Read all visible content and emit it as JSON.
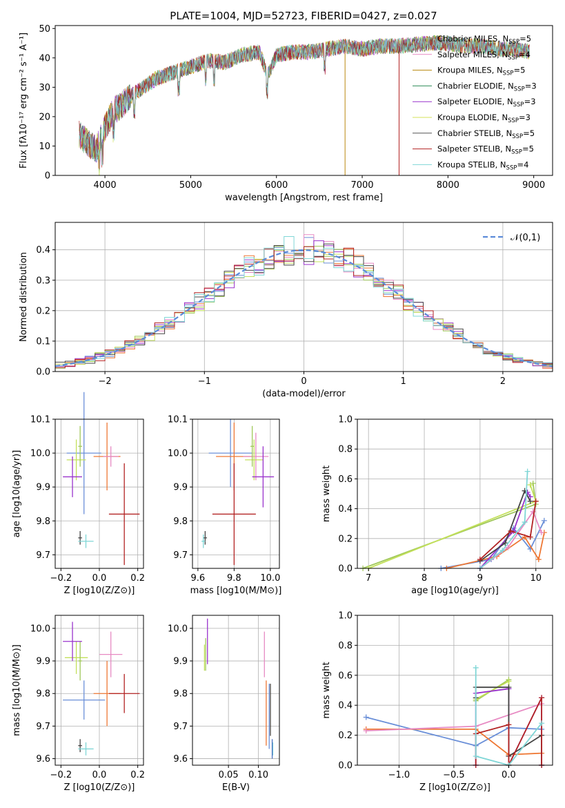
{
  "chart_data": [
    {
      "type": "line",
      "title": "PLATE=1004, MJD=52723, FIBERID=0427, z=0.027",
      "xlabel": "wavelength [Angstrom, rest frame]",
      "ylabel": "Flux [fλ10⁻¹⁷ erg cm⁻² s⁻¹ A⁻¹]",
      "xlim": [
        3420,
        9220
      ],
      "ylim": [
        0,
        51
      ],
      "xticks": [
        "4000",
        "5000",
        "6000",
        "7000",
        "8000",
        "9000"
      ],
      "yticks": [
        "0",
        "10",
        "20",
        "30",
        "40",
        "50"
      ],
      "legend_position": "top-right",
      "series": [
        {
          "name": "Chabrier MILES, N_SSP=5",
          "color": "#8fbc8f"
        },
        {
          "name": "Salpeter MILES, N_SSP=4",
          "color": "#e78ac3"
        },
        {
          "name": "Kroupa MILES, N_SSP=5",
          "color": "#b8860b"
        },
        {
          "name": "Chabrier ELODIE, N_SSP=3",
          "color": "#2e8b57"
        },
        {
          "name": "Salpeter ELODIE, N_SSP=3",
          "color": "#9932cc"
        },
        {
          "name": "Kroupa ELODIE, N_SSP=3",
          "color": "#d4e157"
        },
        {
          "name": "Chabrier STELIB, N_SSP=5",
          "color": "#555555"
        },
        {
          "name": "Salpeter STELIB, N_SSP=5",
          "color": "#b22222"
        },
        {
          "name": "Kroupa STELIB, N_SSP=4",
          "color": "#7fd6d6"
        }
      ],
      "continuum": {
        "x": [
          3700,
          3800,
          3900,
          4000,
          4100,
          4200,
          4300,
          4400,
          4500,
          4600,
          4800,
          5000,
          5200,
          5400,
          5600,
          5800,
          5900,
          6000,
          6200,
          6400,
          6600,
          6800,
          7000,
          7200,
          7400,
          7600,
          7800,
          8000,
          8200,
          8400,
          8600,
          8800,
          8950
        ],
        "y": [
          14,
          11,
          9,
          16,
          22,
          24,
          27,
          29,
          31,
          33,
          35,
          37,
          39,
          38.5,
          41,
          42,
          34,
          41,
          42,
          42,
          43,
          44,
          43,
          44,
          44,
          44.5,
          45,
          45,
          44,
          44,
          43,
          43,
          42
        ]
      },
      "dips": [
        {
          "x": 3934,
          "y": 0
        },
        {
          "x": 6800,
          "y": 0
        },
        {
          "x": 7430,
          "y": 0
        }
      ]
    },
    {
      "type": "histogram",
      "xlabel": "(data-model)/error",
      "ylabel": "Normed distribution",
      "xlim": [
        -2.5,
        2.5
      ],
      "ylim": [
        0,
        0.49
      ],
      "xticks": [
        "−2",
        "−1",
        "0",
        "1",
        "2"
      ],
      "yticks": [
        "0.0",
        "0.1",
        "0.2",
        "0.3",
        "0.4"
      ],
      "reference_curve": "𝒩(0,1)",
      "reference_color": "#5b8bd9",
      "bin_width": 0.1,
      "series_colors": [
        "#6a8fd8",
        "#ee7733",
        "#e78ac3",
        "#a0c85a",
        "#9932cc",
        "#c3e05a",
        "#444444",
        "#b22222",
        "#7fd6d6"
      ]
    },
    {
      "type": "scatter",
      "xlabel": "Z [log10(Z/Z⊙)]",
      "ylabel": "age  [log10(age/yr)]",
      "xlim": [
        -0.23,
        0.23
      ],
      "ylim": [
        9.66,
        10.1
      ],
      "xticks": [
        "−0.2",
        "0.0",
        "0.2"
      ],
      "yticks": [
        "9.7",
        "9.8",
        "9.9",
        "10.0",
        "10.1"
      ],
      "points": [
        {
          "x": -0.08,
          "y": 10.0,
          "xerr": 0.09,
          "yerr": 0.18,
          "color": "#6a8fd8"
        },
        {
          "x": 0.04,
          "y": 9.99,
          "xerr": 0.07,
          "yerr": 0.1,
          "color": "#ee7733"
        },
        {
          "x": 0.06,
          "y": 9.99,
          "xerr": 0.04,
          "yerr": 0.03,
          "color": "#e78ac3"
        },
        {
          "x": -0.12,
          "y": 9.98,
          "xerr": 0.05,
          "yerr": 0.06,
          "color": "#c3e05a"
        },
        {
          "x": -0.1,
          "y": 10.02,
          "xerr": 0.01,
          "yerr": 0.06,
          "color": "#a0c85a"
        },
        {
          "x": -0.14,
          "y": 9.93,
          "xerr": 0.05,
          "yerr": 0.06,
          "color": "#9932cc"
        },
        {
          "x": 0.13,
          "y": 9.82,
          "xerr": 0.08,
          "yerr": 0.15,
          "color": "#b22222"
        },
        {
          "x": -0.1,
          "y": 9.75,
          "xerr": 0.01,
          "yerr": 0.02,
          "color": "#444444"
        },
        {
          "x": -0.07,
          "y": 9.74,
          "xerr": 0.04,
          "yerr": 0.02,
          "color": "#7fd6d6"
        }
      ]
    },
    {
      "type": "scatter",
      "xlabel": "mass [log10(M/M⊙)]",
      "ylabel": "",
      "xlim": [
        9.57,
        10.05
      ],
      "ylim": [
        9.66,
        10.1
      ],
      "xticks": [
        "9.6",
        "9.8",
        "10.0"
      ],
      "yticks": [
        "9.7",
        "9.8",
        "9.9",
        "10.0",
        "10.1"
      ],
      "points": [
        {
          "x": 9.78,
          "y": 10.0,
          "xerr": 0.12,
          "yerr": 0.1,
          "color": "#6a8fd8"
        },
        {
          "x": 9.8,
          "y": 9.99,
          "xerr": 0.1,
          "yerr": 0.1,
          "color": "#ee7733"
        },
        {
          "x": 9.92,
          "y": 9.99,
          "xerr": 0.07,
          "yerr": 0.07,
          "color": "#e78ac3"
        },
        {
          "x": 9.91,
          "y": 9.98,
          "xerr": 0.05,
          "yerr": 0.06,
          "color": "#c3e05a"
        },
        {
          "x": 9.9,
          "y": 10.02,
          "xerr": 0.01,
          "yerr": 0.06,
          "color": "#a0c85a"
        },
        {
          "x": 9.96,
          "y": 9.93,
          "xerr": 0.06,
          "yerr": 0.09,
          "color": "#9932cc"
        },
        {
          "x": 9.8,
          "y": 9.82,
          "xerr": 0.12,
          "yerr": 0.15,
          "color": "#b22222"
        },
        {
          "x": 9.64,
          "y": 9.75,
          "xerr": 0.01,
          "yerr": 0.02,
          "color": "#444444"
        },
        {
          "x": 9.63,
          "y": 9.74,
          "xerr": 0.01,
          "yerr": 0.02,
          "color": "#7fd6d6"
        }
      ]
    },
    {
      "type": "line",
      "xlabel": "age  [log10(age/yr)]",
      "ylabel": "mass weight",
      "xlim": [
        6.8,
        10.3
      ],
      "ylim": [
        0,
        1
      ],
      "xticks": [
        "7",
        "8",
        "9",
        "10"
      ],
      "yticks": [
        "0.0",
        "0.2",
        "0.4",
        "0.6",
        "0.8",
        "1.0"
      ],
      "series": [
        {
          "color": "#6a8fd8",
          "x": [
            8.3,
            9.2,
            9.6,
            9.9,
            10.15
          ],
          "y": [
            0.0,
            0.06,
            0.27,
            0.13,
            0.32
          ]
        },
        {
          "color": "#ee7733",
          "x": [
            8.4,
            9.3,
            9.8,
            10.05,
            10.15
          ],
          "y": [
            0.0,
            0.08,
            0.21,
            0.06,
            0.24
          ]
        },
        {
          "color": "#e78ac3",
          "x": [
            9.0,
            9.5,
            9.95,
            10.1
          ],
          "y": [
            0.0,
            0.14,
            0.38,
            0.24
          ]
        },
        {
          "color": "#a0c85a",
          "x": [
            6.9,
            10.0,
            9.95
          ],
          "y": [
            0.0,
            0.43,
            0.57
          ]
        },
        {
          "color": "#c3e05a",
          "x": [
            7.0,
            10.0,
            9.9
          ],
          "y": [
            0.0,
            0.45,
            0.56
          ]
        },
        {
          "color": "#9932cc",
          "x": [
            9.0,
            9.6,
            9.85,
            9.9
          ],
          "y": [
            0.0,
            0.25,
            0.51,
            0.48
          ]
        },
        {
          "color": "#444444",
          "x": [
            9.0,
            9.45,
            9.8,
            9.9
          ],
          "y": [
            0.05,
            0.17,
            0.52,
            0.45
          ]
        },
        {
          "color": "#b22222",
          "x": [
            9.0,
            9.55,
            9.9,
            10.0
          ],
          "y": [
            0.06,
            0.25,
            0.21,
            0.45
          ]
        },
        {
          "color": "#7fd6d6",
          "x": [
            9.0,
            9.4,
            9.8,
            9.85
          ],
          "y": [
            0.0,
            0.12,
            0.31,
            0.65
          ]
        }
      ]
    },
    {
      "type": "scatter",
      "xlabel": "Z [log10(Z/Z⊙)]",
      "ylabel": "mass [log10(M/M⊙)]",
      "xlim": [
        -0.23,
        0.23
      ],
      "ylim": [
        9.58,
        10.04
      ],
      "xticks": [
        "−0.2",
        "0.0",
        "0.2"
      ],
      "yticks": [
        "9.6",
        "9.7",
        "9.8",
        "9.9",
        "10.0"
      ],
      "points": [
        {
          "x": -0.08,
          "y": 9.78,
          "xerr": 0.11,
          "yerr": 0.06,
          "color": "#6a8fd8"
        },
        {
          "x": 0.04,
          "y": 9.8,
          "xerr": 0.07,
          "yerr": 0.1,
          "color": "#ee7733"
        },
        {
          "x": 0.06,
          "y": 9.92,
          "xerr": 0.06,
          "yerr": 0.07,
          "color": "#e78ac3"
        },
        {
          "x": -0.12,
          "y": 9.91,
          "xerr": 0.06,
          "yerr": 0.05,
          "color": "#c3e05a"
        },
        {
          "x": -0.1,
          "y": 9.9,
          "xerr": 0.01,
          "yerr": 0.06,
          "color": "#a0c85a"
        },
        {
          "x": -0.14,
          "y": 9.96,
          "xerr": 0.05,
          "yerr": 0.06,
          "color": "#9932cc"
        },
        {
          "x": 0.13,
          "y": 9.8,
          "xerr": 0.08,
          "yerr": 0.06,
          "color": "#b22222"
        },
        {
          "x": -0.1,
          "y": 9.64,
          "xerr": 0.01,
          "yerr": 0.02,
          "color": "#444444"
        },
        {
          "x": -0.07,
          "y": 9.63,
          "xerr": 0.04,
          "yerr": 0.02,
          "color": "#7fd6d6"
        }
      ]
    },
    {
      "type": "scatter",
      "xlabel": "E(B-V)",
      "ylabel": "",
      "xlim": [
        -0.01,
        0.135
      ],
      "ylim": [
        9.58,
        10.04
      ],
      "xticks": [
        "0.05",
        "0.10"
      ],
      "yticks": [
        "9.6",
        "9.7",
        "9.8",
        "9.9",
        "10.0"
      ],
      "points": [
        {
          "x": 0.118,
          "y": 9.73,
          "xerr": 0.0,
          "yerr": 0.1,
          "color": "#6a8fd8"
        },
        {
          "x": 0.113,
          "y": 9.74,
          "xerr": 0.0,
          "yerr": 0.1,
          "color": "#ee7733"
        },
        {
          "x": 0.11,
          "y": 9.92,
          "xerr": 0.0,
          "yerr": 0.07,
          "color": "#e78ac3"
        },
        {
          "x": 0.01,
          "y": 9.91,
          "xerr": 0.0,
          "yerr": 0.04,
          "color": "#c3e05a"
        },
        {
          "x": 0.012,
          "y": 9.92,
          "xerr": 0.0,
          "yerr": 0.05,
          "color": "#a0c85a"
        },
        {
          "x": 0.015,
          "y": 9.96,
          "xerr": 0.0,
          "yerr": 0.07,
          "color": "#9932cc"
        },
        {
          "x": 0.12,
          "y": 9.75,
          "xerr": 0.0,
          "yerr": 0.08,
          "color": "#444444"
        },
        {
          "x": 0.124,
          "y": 9.63,
          "xerr": 0.0,
          "yerr": 0.02,
          "color": "#7fd6d6"
        },
        {
          "x": 0.123,
          "y": 9.63,
          "xerr": 0.0,
          "yerr": 0.03,
          "color": "#4a70c0"
        }
      ]
    },
    {
      "type": "line",
      "xlabel": "Z [log10(Z/Z⊙)]",
      "ylabel": "mass weight",
      "xlim": [
        -1.38,
        0.4
      ],
      "ylim": [
        0,
        1
      ],
      "xticks": [
        "−1.0",
        "−0.5",
        "0.0"
      ],
      "yticks": [
        "0.0",
        "0.2",
        "0.4",
        "0.6",
        "0.8",
        "1.0"
      ],
      "series": [
        {
          "color": "#6a8fd8",
          "x": [
            -1.3,
            -0.3,
            0.0,
            0.3
          ],
          "y": [
            0.32,
            0.13,
            0.25,
            0.24
          ]
        },
        {
          "color": "#ee7733",
          "x": [
            -1.3,
            -0.3,
            0.0,
            0.3
          ],
          "y": [
            0.24,
            0.24,
            0.07,
            0.08
          ]
        },
        {
          "color": "#e78ac3",
          "x": [
            -1.3,
            -0.3,
            0.3
          ],
          "y": [
            0.23,
            0.26,
            0.41
          ]
        },
        {
          "color": "#a0c85a",
          "x": [
            -0.3,
            0.0,
            0.0
          ],
          "y": [
            0.43,
            0.57,
            0.0
          ]
        },
        {
          "color": "#c3e05a",
          "x": [
            -0.3,
            0.0,
            0.0
          ],
          "y": [
            0.44,
            0.56,
            0.0
          ]
        },
        {
          "color": "#9932cc",
          "x": [
            -0.3,
            -0.3,
            0.0,
            0.0,
            0.3,
            0.3
          ],
          "y": [
            0.0,
            0.48,
            0.51,
            0.0,
            0.45,
            0.0
          ]
        },
        {
          "color": "#444444",
          "x": [
            -0.3,
            -0.3,
            0.0,
            0.0,
            0.3,
            0.3
          ],
          "y": [
            0.45,
            0.52,
            0.52,
            0.06,
            0.2,
            0.0
          ]
        },
        {
          "color": "#b22222",
          "x": [
            -0.3,
            -0.3,
            0.0,
            0.0,
            0.3,
            0.3
          ],
          "y": [
            0.0,
            0.21,
            0.27,
            0.0,
            0.45,
            0.0
          ]
        },
        {
          "color": "#7fd6d6",
          "x": [
            -0.3,
            -0.3,
            0.0,
            0.3
          ],
          "y": [
            0.65,
            0.06,
            0.0,
            0.28
          ]
        }
      ]
    }
  ]
}
